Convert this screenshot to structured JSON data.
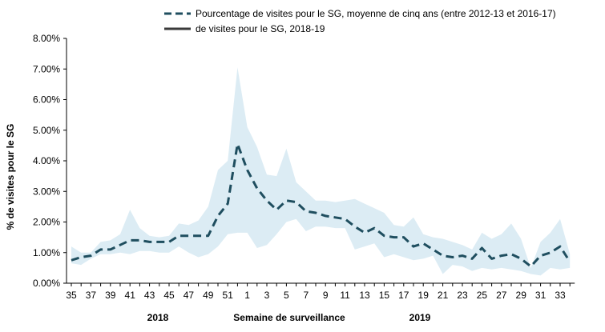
{
  "chart_data": {
    "type": "line",
    "ylabel": "% de visites pour le SG",
    "xlabel": "Semaine de surveillance",
    "year_labels": [
      "2018",
      "2019"
    ],
    "ylim": [
      0,
      8
    ],
    "y_ticks": [
      "0.00%",
      "1.00%",
      "2.00%",
      "3.00%",
      "4.00%",
      "5.00%",
      "6.00%",
      "7.00%",
      "8.00%"
    ],
    "x_tick_labels": [
      "35",
      "37",
      "39",
      "41",
      "43",
      "45",
      "47",
      "49",
      "51",
      "1",
      "3",
      "5",
      "7",
      "9",
      "11",
      "13",
      "15",
      "17",
      "19",
      "21",
      "23",
      "25",
      "27",
      "29",
      "31",
      "33"
    ],
    "weeks": [
      "35",
      "36",
      "37",
      "38",
      "39",
      "40",
      "41",
      "42",
      "43",
      "44",
      "45",
      "46",
      "47",
      "48",
      "49",
      "50",
      "51",
      "52",
      "1",
      "2",
      "3",
      "4",
      "5",
      "6",
      "7",
      "8",
      "9",
      "10",
      "11",
      "12",
      "13",
      "14",
      "15",
      "16",
      "17",
      "18",
      "19",
      "20",
      "21",
      "22",
      "23",
      "24",
      "25",
      "26",
      "27",
      "28",
      "29",
      "30",
      "31",
      "32",
      "33",
      "34"
    ],
    "colors": {
      "line": "#1f4e5f",
      "band": "#dcecf4"
    },
    "series": [
      {
        "name": "Pourcentage de visites pour le SG, moyenne de cinq ans (entre 2012-13 et 2016-17)",
        "style": "dashed",
        "values": [
          0.75,
          0.85,
          0.9,
          1.1,
          1.1,
          1.25,
          1.4,
          1.4,
          1.35,
          1.35,
          1.35,
          1.55,
          1.55,
          1.55,
          1.55,
          2.2,
          2.6,
          4.55,
          3.7,
          3.1,
          2.7,
          2.4,
          2.7,
          2.65,
          2.35,
          2.3,
          2.2,
          2.15,
          2.1,
          1.85,
          1.65,
          1.8,
          1.55,
          1.5,
          1.5,
          1.2,
          1.3,
          1.1,
          0.9,
          0.85,
          0.9,
          0.8,
          1.15,
          0.8,
          0.9,
          0.95,
          0.8,
          0.55,
          0.9,
          1.0,
          1.2,
          0.7
        ]
      },
      {
        "name": "de visites pour le SG, 2018-19",
        "style": "solid",
        "values": []
      }
    ],
    "band": {
      "upper": [
        1.2,
        1.0,
        1.0,
        1.35,
        1.4,
        1.6,
        2.4,
        1.8,
        1.55,
        1.5,
        1.55,
        1.95,
        1.9,
        2.05,
        2.5,
        3.7,
        4.0,
        7.05,
        5.1,
        4.45,
        3.55,
        3.5,
        4.4,
        3.3,
        3.0,
        2.7,
        2.7,
        2.65,
        2.7,
        2.75,
        2.6,
        2.45,
        2.3,
        1.9,
        1.85,
        2.15,
        1.6,
        1.5,
        1.45,
        1.35,
        1.25,
        1.1,
        1.65,
        1.45,
        1.6,
        1.95,
        1.45,
        0.5,
        1.35,
        1.65,
        2.1,
        0.95
      ],
      "lower": [
        0.65,
        0.6,
        0.8,
        0.95,
        0.95,
        1.0,
        0.95,
        1.05,
        1.05,
        1.0,
        1.0,
        1.2,
        1.0,
        0.85,
        0.95,
        1.2,
        1.6,
        1.65,
        1.65,
        1.15,
        1.25,
        1.6,
        2.0,
        2.1,
        1.7,
        1.85,
        1.85,
        1.8,
        1.8,
        1.1,
        1.2,
        1.3,
        0.85,
        0.95,
        0.85,
        0.75,
        0.8,
        0.9,
        0.3,
        0.6,
        0.55,
        0.4,
        0.5,
        0.45,
        0.5,
        0.45,
        0.4,
        0.3,
        0.25,
        0.5,
        0.45,
        0.5
      ]
    }
  }
}
